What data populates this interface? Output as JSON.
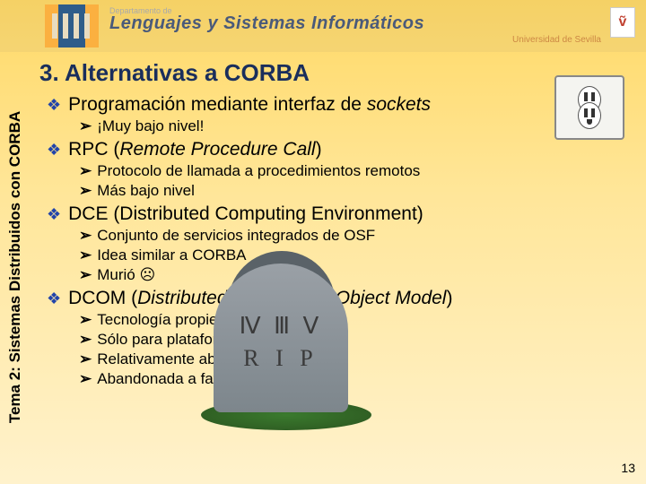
{
  "header": {
    "dept": "Departamento de",
    "title": "Lenguajes y Sistemas Informáticos",
    "university": "Universidad de Sevilla",
    "uni_glyph": "ṽ"
  },
  "sidebar": {
    "label": "Tema 2: Sistemas Distribuidos con CORBA"
  },
  "title": "3. Alternativas a CORBA",
  "items": [
    {
      "text_pre": "Programación mediante interfaz de ",
      "text_em": "sockets",
      "text_post": "",
      "sub": [
        "¡Muy bajo nivel!"
      ]
    },
    {
      "text_pre": "RPC (",
      "text_em": "Remote Procedure Call",
      "text_post": ")",
      "sub": [
        "Protocolo de llamada a procedimientos remotos",
        "Más bajo nivel"
      ]
    },
    {
      "text_pre": "DCE (Distributed Computing Environment)",
      "text_em": "",
      "text_post": "",
      "sub": [
        "Conjunto de servicios integrados de OSF",
        "Idea similar a CORBA",
        "Murió ☹"
      ]
    },
    {
      "text_pre": "DCOM (",
      "text_em": "Distributed Component Object Model",
      "text_post": ")",
      "sub": [
        "Tecnología propietaria Microsoft",
        "Sólo para plataforma Windows",
        "Relativamente abierto",
        "Abandonada a favor de .NET"
      ]
    }
  ],
  "tombstone": {
    "roman": "Ⅳ Ⅲ Ⅴ",
    "rip": "R I P"
  },
  "page_number": "13",
  "colors": {
    "bg_top": "#ffd966",
    "bg_mid": "#ffe699",
    "bg_bot": "#fff2cc",
    "title_color": "#1a2e5c",
    "diamond": "#2244aa",
    "header_text": "#4a5a7a",
    "stone_front": "#9aa0a6",
    "stone_back": "#5a6268"
  },
  "bullets": {
    "diamond": "❖",
    "arrow": "➢"
  }
}
